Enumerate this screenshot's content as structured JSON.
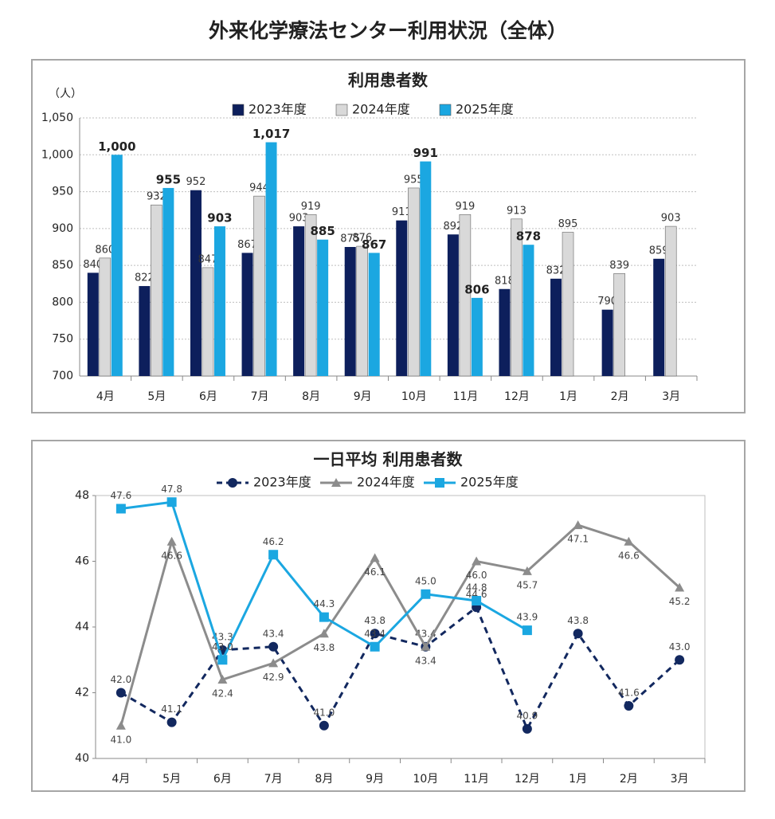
{
  "title": "外来化学療法センター利用状況（全体）",
  "chart_data": [
    {
      "type": "bar",
      "title": "利用患者数",
      "unit": "（人）",
      "categories": [
        "4月",
        "5月",
        "6月",
        "7月",
        "8月",
        "9月",
        "10月",
        "11月",
        "12月",
        "1月",
        "2月",
        "3月"
      ],
      "series": [
        {
          "name": "2023年度",
          "color": "#0d1f5c",
          "values": [
            840,
            822,
            952,
            867,
            903,
            875,
            911,
            892,
            818,
            832,
            790,
            859
          ]
        },
        {
          "name": "2024年度",
          "color": "#d9d9d9",
          "values": [
            860,
            932,
            847,
            944,
            919,
            876,
            955,
            919,
            913,
            895,
            839,
            903
          ]
        },
        {
          "name": "2025年度",
          "color": "#1ba7e1",
          "values": [
            1000,
            955,
            903,
            1017,
            885,
            867,
            991,
            806,
            878,
            null,
            null,
            null
          ],
          "value_labels": [
            "1,000",
            "955",
            "903",
            "1,017",
            "885",
            "867",
            "991",
            "806",
            "878",
            null,
            null,
            null
          ],
          "value_label_bold": true
        }
      ],
      "ylim": [
        700,
        1050
      ],
      "yticks": [
        700,
        750,
        800,
        850,
        900,
        950,
        {
          "value": 1000,
          "label": "1,000"
        },
        {
          "value": 1050,
          "label": "1,050"
        }
      ],
      "grid": true,
      "legend": "top"
    },
    {
      "type": "line",
      "title": "一日平均 利用患者数",
      "categories": [
        "4月",
        "5月",
        "6月",
        "7月",
        "8月",
        "9月",
        "10月",
        "11月",
        "12月",
        "1月",
        "2月",
        "3月"
      ],
      "series": [
        {
          "name": "2023年度",
          "color": "#12285f",
          "marker": "circle",
          "dash": true,
          "values": [
            42.0,
            41.1,
            43.3,
            43.4,
            41.0,
            43.8,
            43.4,
            44.6,
            40.9,
            43.8,
            41.6,
            43.0
          ],
          "value_labels": [
            "42.0",
            "41.1",
            "43.3",
            "43.4",
            "41.0",
            "43.8",
            "43.4",
            "44.6",
            "40.9",
            "43.8",
            "41.6",
            "43.0"
          ]
        },
        {
          "name": "2024年度",
          "color": "#8c8c8c",
          "marker": "triangle",
          "dash": false,
          "values": [
            41.0,
            46.6,
            42.4,
            42.9,
            43.8,
            46.1,
            43.4,
            46.0,
            45.7,
            47.1,
            46.6,
            45.2
          ],
          "value_labels": [
            "41.0",
            "46.6",
            "42.4",
            "42.9",
            "43.8",
            "46.1",
            "43.4",
            "46.0",
            "45.7",
            "47.1",
            "46.6",
            "45.2"
          ]
        },
        {
          "name": "2025年度",
          "color": "#1ba7e1",
          "marker": "square",
          "dash": false,
          "values": [
            47.6,
            47.8,
            43.0,
            46.2,
            44.3,
            43.4,
            45.0,
            44.8,
            43.9,
            null,
            null,
            null
          ],
          "value_labels": [
            "47.6",
            "47.8",
            "43.0",
            "46.2",
            "44.3",
            "43.4",
            "45.0",
            "44.8",
            "43.9",
            null,
            null,
            null
          ]
        }
      ],
      "ylim": [
        40,
        48
      ],
      "yticks": [
        40,
        42,
        44,
        46,
        48
      ],
      "grid": false,
      "legend": "top"
    }
  ]
}
